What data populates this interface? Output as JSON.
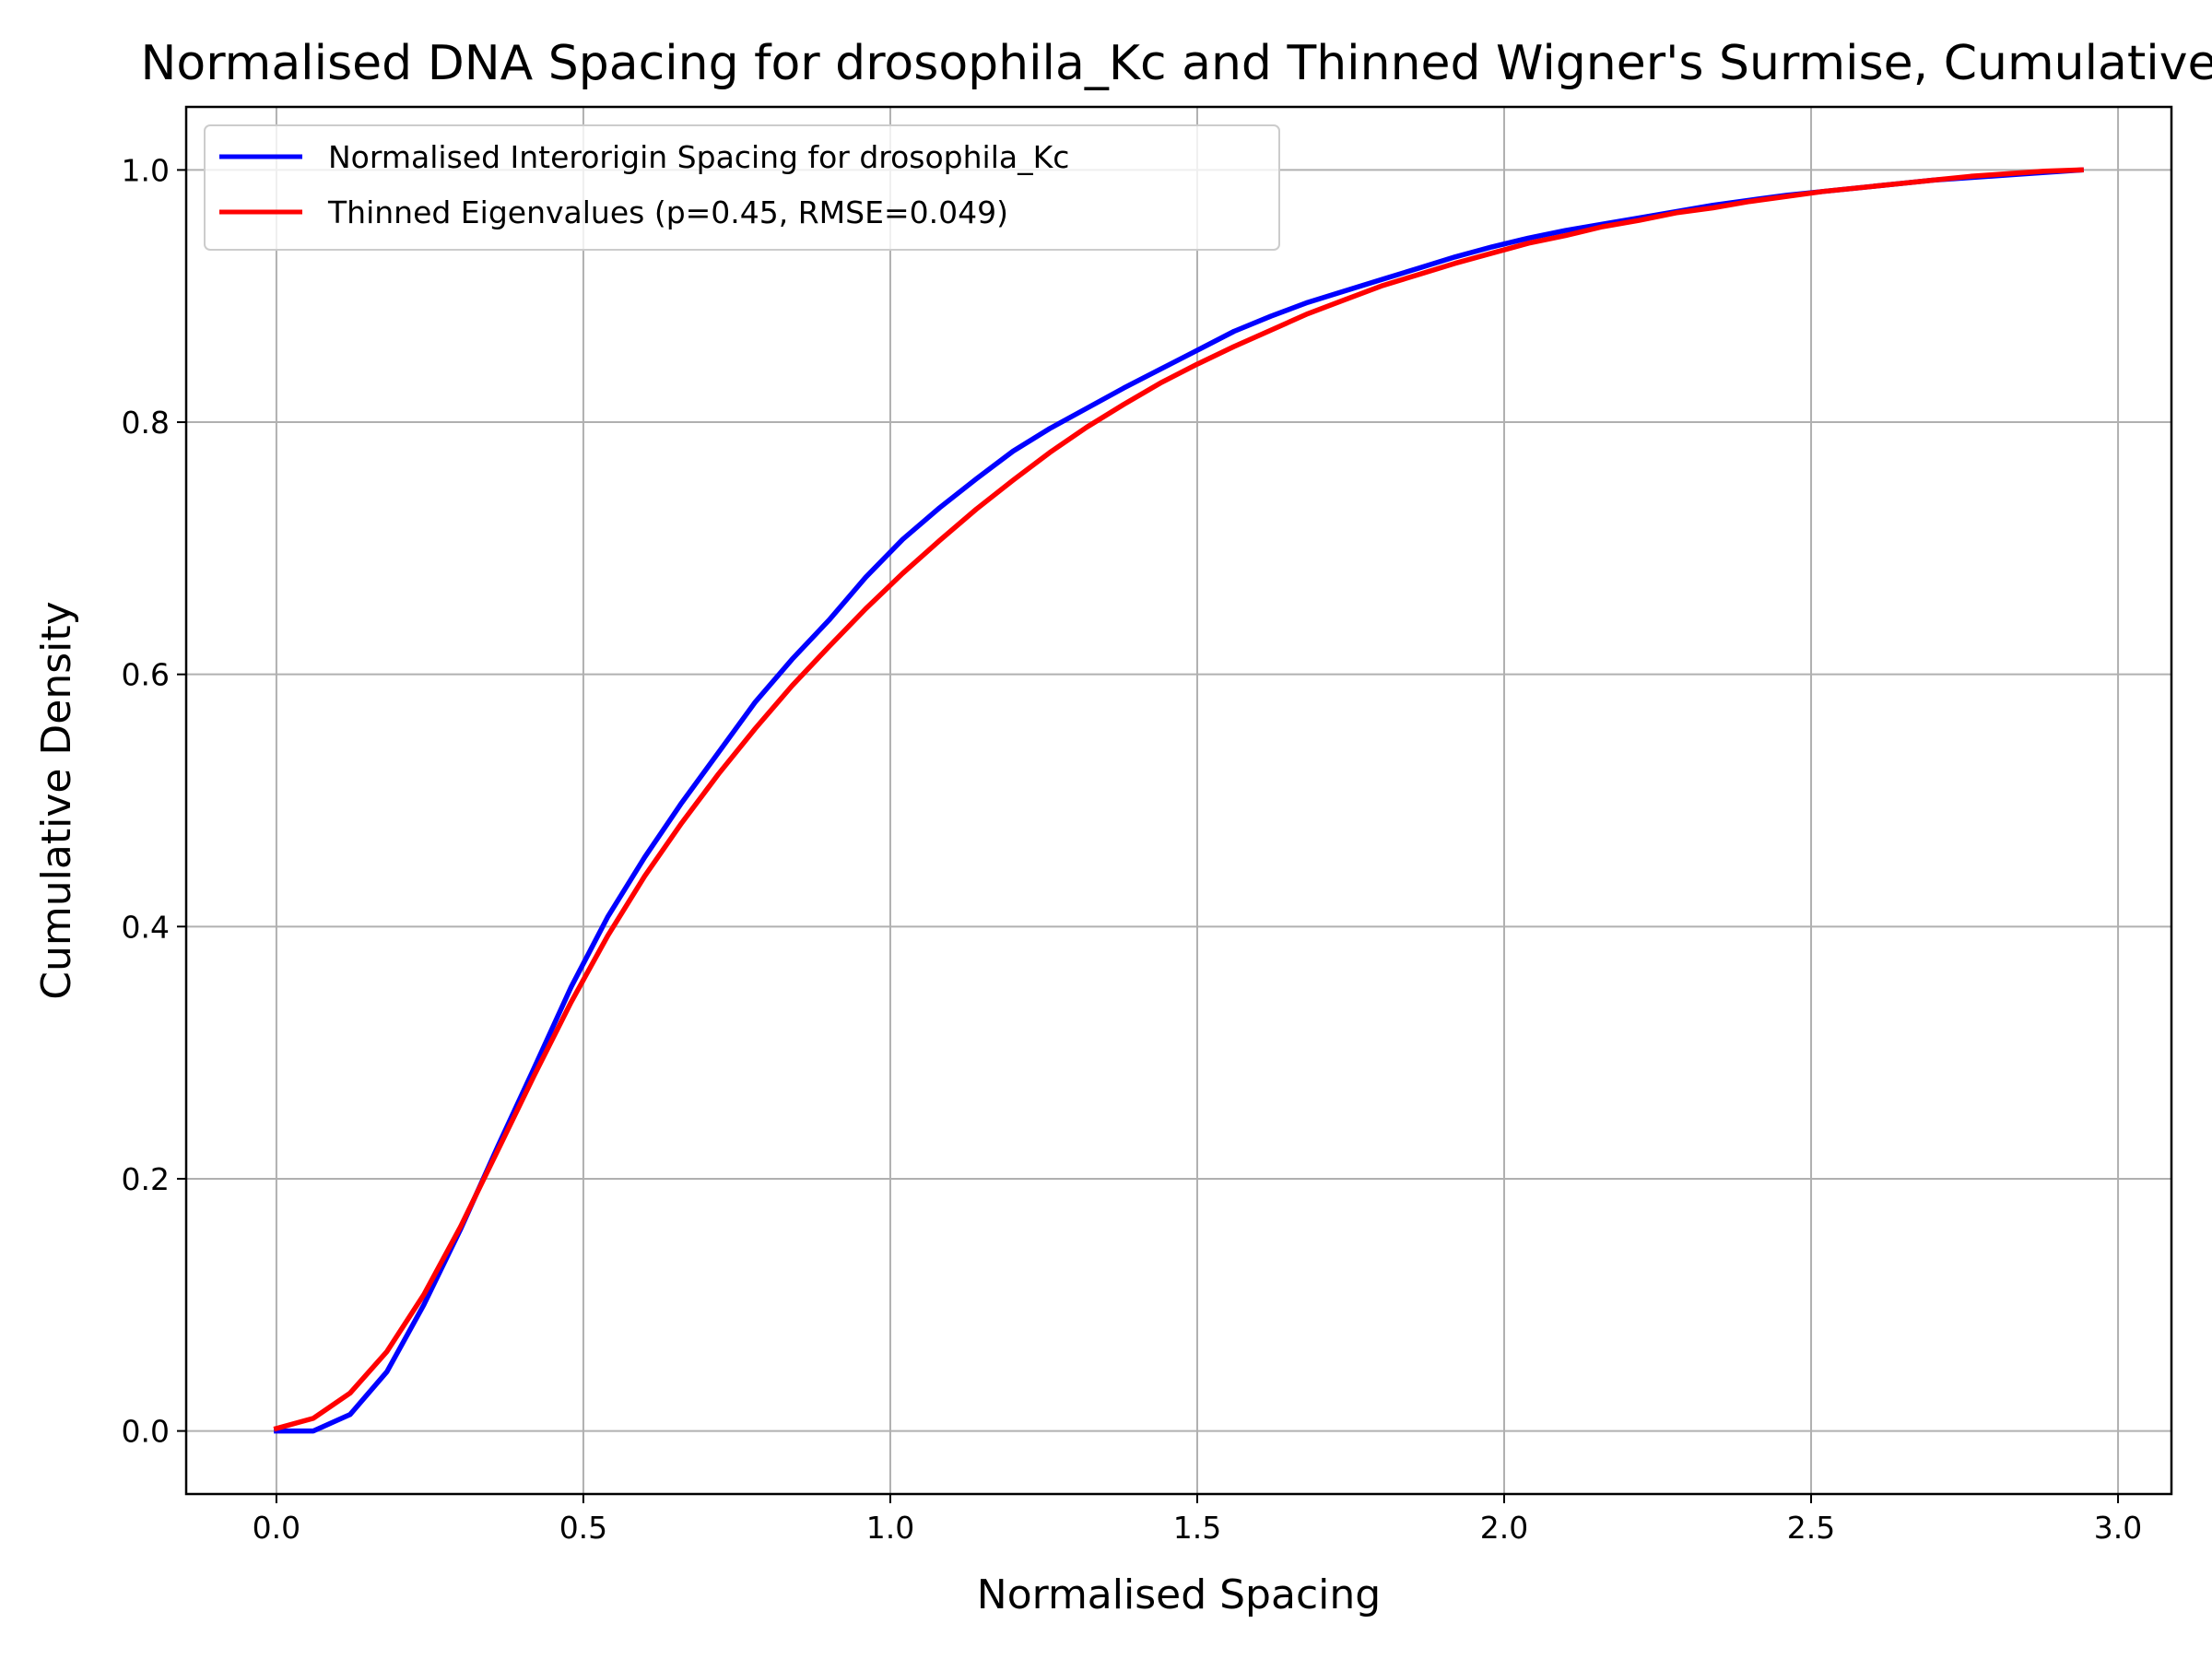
{
  "chart_data": {
    "type": "line",
    "title": "Normalised DNA Spacing for drosophila_Kc and Thinned Wigner's Surmise, Cumulative",
    "xlabel": "Normalised Spacing",
    "ylabel": "Cumulative Density",
    "xlim": [
      -0.147,
      3.087
    ],
    "ylim": [
      -0.05,
      1.05
    ],
    "xticks": [
      0.0,
      0.5,
      1.0,
      1.5,
      2.0,
      2.5,
      3.0
    ],
    "xtick_labels": [
      "0.0",
      "0.5",
      "1.0",
      "1.5",
      "2.0",
      "2.5",
      "3.0"
    ],
    "yticks": [
      0.0,
      0.2,
      0.4,
      0.6,
      0.8,
      1.0
    ],
    "ytick_labels": [
      "0.0",
      "0.2",
      "0.4",
      "0.6",
      "0.8",
      "1.0"
    ],
    "grid": true,
    "legend_position": "top-left",
    "series": [
      {
        "name": "Normalised Interorigin Spacing for drosophila_Kc",
        "color": "#0000ff",
        "x": [
          0.0,
          0.06,
          0.12,
          0.18,
          0.24,
          0.3,
          0.36,
          0.42,
          0.48,
          0.54,
          0.6,
          0.66,
          0.72,
          0.78,
          0.84,
          0.9,
          0.96,
          1.02,
          1.08,
          1.14,
          1.2,
          1.26,
          1.32,
          1.38,
          1.44,
          1.5,
          1.56,
          1.62,
          1.68,
          1.74,
          1.8,
          1.86,
          1.92,
          1.98,
          2.04,
          2.1,
          2.16,
          2.22,
          2.28,
          2.34,
          2.4,
          2.46,
          2.52,
          2.58,
          2.64,
          2.7,
          2.76,
          2.82,
          2.88,
          2.94
        ],
        "y": [
          0.0,
          0.0,
          0.013,
          0.047,
          0.1,
          0.16,
          0.225,
          0.288,
          0.352,
          0.408,
          0.455,
          0.498,
          0.538,
          0.578,
          0.612,
          0.643,
          0.677,
          0.707,
          0.732,
          0.755,
          0.777,
          0.795,
          0.811,
          0.827,
          0.842,
          0.857,
          0.872,
          0.884,
          0.895,
          0.904,
          0.913,
          0.922,
          0.931,
          0.939,
          0.946,
          0.952,
          0.957,
          0.962,
          0.967,
          0.972,
          0.976,
          0.98,
          0.983,
          0.986,
          0.989,
          0.992,
          0.994,
          0.996,
          0.998,
          1.0
        ]
      },
      {
        "name": "Thinned Eigenvalues (p=0.45, RMSE=0.049)",
        "color": "#ff0000",
        "x": [
          0.0,
          0.06,
          0.12,
          0.18,
          0.24,
          0.3,
          0.36,
          0.42,
          0.48,
          0.54,
          0.6,
          0.66,
          0.72,
          0.78,
          0.84,
          0.9,
          0.96,
          1.02,
          1.08,
          1.14,
          1.2,
          1.26,
          1.32,
          1.38,
          1.44,
          1.5,
          1.56,
          1.62,
          1.68,
          1.74,
          1.8,
          1.86,
          1.92,
          1.98,
          2.04,
          2.1,
          2.16,
          2.22,
          2.28,
          2.34,
          2.4,
          2.46,
          2.52,
          2.58,
          2.64,
          2.7,
          2.76,
          2.82,
          2.88,
          2.94
        ],
        "y": [
          0.002,
          0.01,
          0.03,
          0.063,
          0.108,
          0.162,
          0.222,
          0.282,
          0.34,
          0.393,
          0.44,
          0.482,
          0.521,
          0.557,
          0.591,
          0.622,
          0.652,
          0.68,
          0.706,
          0.731,
          0.754,
          0.776,
          0.796,
          0.814,
          0.831,
          0.846,
          0.86,
          0.873,
          0.886,
          0.897,
          0.908,
          0.917,
          0.926,
          0.934,
          0.942,
          0.948,
          0.955,
          0.96,
          0.966,
          0.97,
          0.975,
          0.979,
          0.983,
          0.986,
          0.989,
          0.992,
          0.995,
          0.997,
          0.999,
          1.0
        ]
      }
    ]
  }
}
